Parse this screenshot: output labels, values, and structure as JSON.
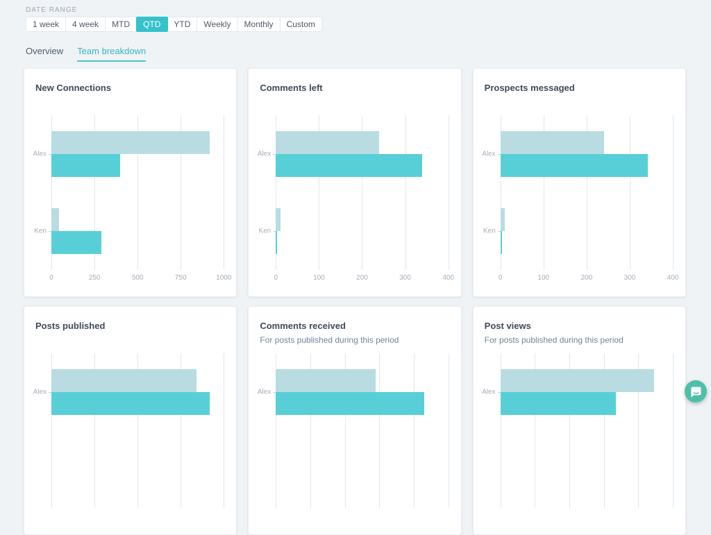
{
  "date_range": {
    "label": "DATE RANGE",
    "options": [
      "1 week",
      "4 week",
      "MTD",
      "QTD",
      "YTD",
      "Weekly",
      "Monthly",
      "Custom"
    ],
    "selected": "QTD"
  },
  "tabs": [
    {
      "label": "Overview",
      "active": false
    },
    {
      "label": "Team breakdown",
      "active": true
    }
  ],
  "colors": {
    "accent_teal": "#36c1cb",
    "tab_active": "#35b7c1",
    "bar_light": "#b8dce1",
    "bar_teal": "#58cfd7",
    "chat_button": "#50bfa9",
    "page_background": "#eff3f6"
  },
  "chart_data": [
    {
      "type": "bar",
      "orientation": "horizontal",
      "title": "New Connections",
      "subtitle": null,
      "categories": [
        "Alex",
        "Ken"
      ],
      "series": [
        {
          "name": "light",
          "values": [
            920,
            45
          ]
        },
        {
          "name": "teal",
          "values": [
            400,
            290
          ]
        }
      ],
      "axis": {
        "max": 1000,
        "gridlines": 5,
        "tick_labels": [
          "0",
          "250",
          "500",
          "750",
          "1000"
        ]
      }
    },
    {
      "type": "bar",
      "orientation": "horizontal",
      "title": "Comments left",
      "subtitle": null,
      "categories": [
        "Alex",
        "Ken"
      ],
      "series": [
        {
          "name": "light",
          "values": [
            240,
            10
          ]
        },
        {
          "name": "teal",
          "values": [
            340,
            3
          ]
        }
      ],
      "axis": {
        "max": 400,
        "gridlines": 5,
        "tick_labels": [
          "0",
          "100",
          "200",
          "300",
          "400"
        ]
      }
    },
    {
      "type": "bar",
      "orientation": "horizontal",
      "title": "Prospects messaged",
      "subtitle": null,
      "categories": [
        "Alex",
        "Ken"
      ],
      "series": [
        {
          "name": "light",
          "values": [
            240,
            10
          ]
        },
        {
          "name": "teal",
          "values": [
            342,
            3
          ]
        }
      ],
      "axis": {
        "max": 400,
        "gridlines": 5,
        "tick_labels": [
          "0",
          "100",
          "200",
          "300",
          "400"
        ]
      }
    },
    {
      "type": "bar",
      "orientation": "horizontal",
      "title": "Posts published",
      "subtitle": null,
      "categories": [
        "Alex"
      ],
      "series": [
        {
          "name": "light",
          "values": [
            0.84
          ]
        },
        {
          "name": "teal",
          "values": [
            0.92
          ]
        }
      ],
      "axis": {
        "max": 1,
        "gridlines": 5,
        "tick_labels": [],
        "units": "fraction_of_axis"
      }
    },
    {
      "type": "bar",
      "orientation": "horizontal",
      "title": "Comments received",
      "subtitle": "For posts published during this period",
      "categories": [
        "Alex"
      ],
      "series": [
        {
          "name": "light",
          "values": [
            0.58
          ]
        },
        {
          "name": "teal",
          "values": [
            0.86
          ]
        }
      ],
      "axis": {
        "max": 1,
        "gridlines": 6,
        "tick_labels": [],
        "units": "fraction_of_axis"
      }
    },
    {
      "type": "bar",
      "orientation": "horizontal",
      "title": "Post views",
      "subtitle": "For posts published during this period",
      "categories": [
        "Alex"
      ],
      "series": [
        {
          "name": "light",
          "values": [
            0.89
          ]
        },
        {
          "name": "teal",
          "values": [
            0.67
          ]
        }
      ],
      "axis": {
        "max": 1,
        "gridlines": 6,
        "tick_labels": [],
        "units": "fraction_of_axis"
      }
    }
  ]
}
